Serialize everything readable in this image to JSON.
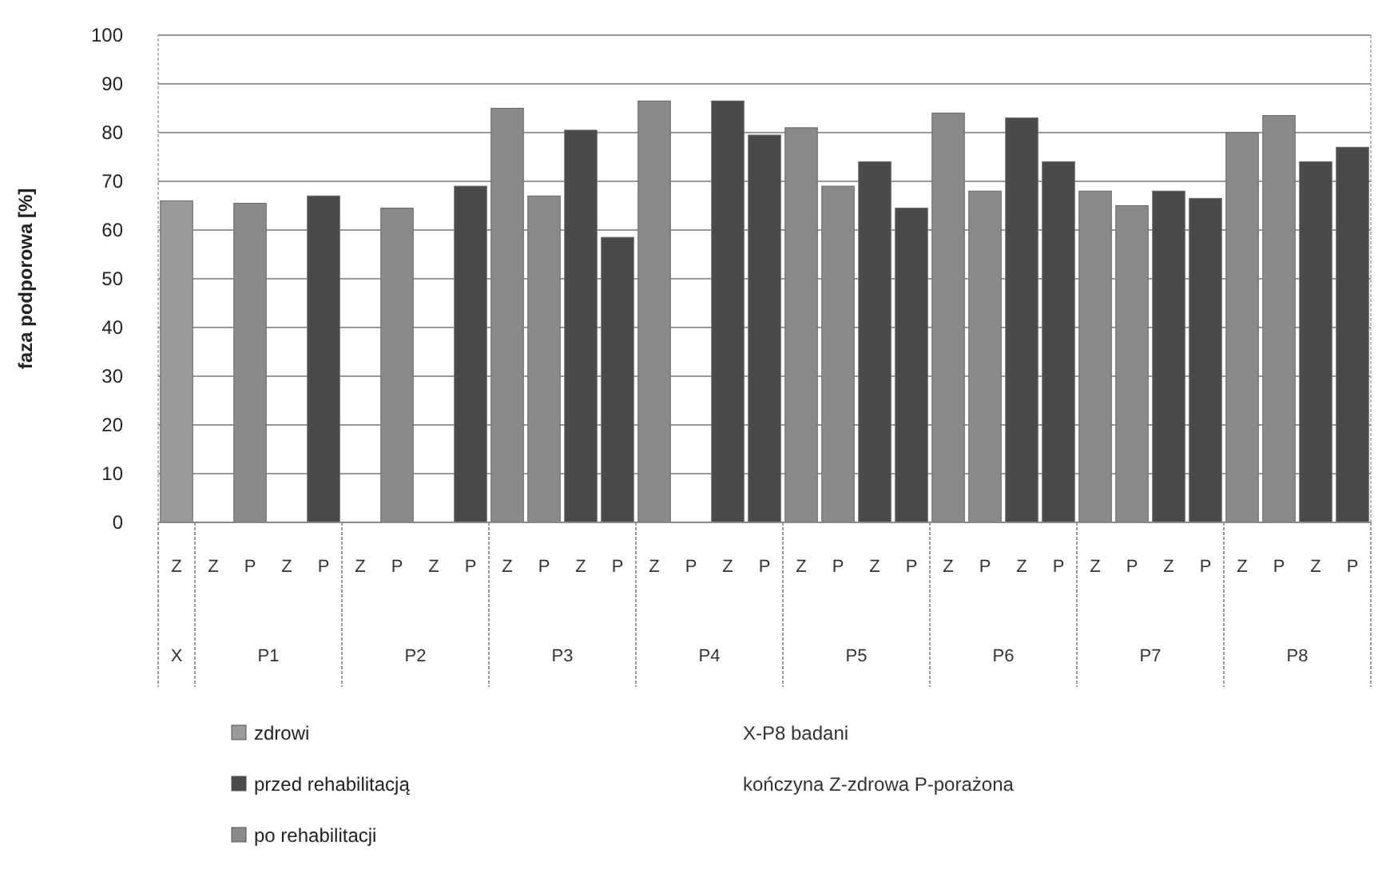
{
  "chart_data": {
    "type": "bar",
    "ylabel": "faza podporowa [%]",
    "categories": [
      "Z",
      "Z",
      "P",
      "Z",
      "P",
      "Z",
      "P",
      "Z",
      "P",
      "Z",
      "P",
      "Z",
      "P",
      "Z",
      "P",
      "Z",
      "P",
      "Z",
      "P",
      "Z",
      "P",
      "Z",
      "P",
      "Z",
      "P",
      "Z",
      "P",
      "Z",
      "P",
      "Z",
      "P",
      "Z",
      "P"
    ],
    "series": [
      {
        "name": "zdrowi",
        "color": "#9a9a9a",
        "values": [
          66,
          null,
          null,
          null,
          null,
          null,
          null,
          null,
          null,
          null,
          null,
          null,
          null,
          null,
          null,
          null,
          null,
          null,
          null,
          null,
          null,
          null,
          null,
          null,
          null,
          null,
          null,
          null,
          null,
          null,
          null,
          null,
          null
        ]
      },
      {
        "name": "przed rehabilitacją",
        "color": "#4a4a4a",
        "values": [
          null,
          null,
          null,
          null,
          67,
          null,
          null,
          null,
          69,
          null,
          null,
          80.5,
          58.5,
          null,
          null,
          86.5,
          79.5,
          null,
          null,
          74,
          64.5,
          null,
          null,
          83,
          74,
          null,
          null,
          68,
          66.5,
          null,
          null,
          74,
          77
        ]
      },
      {
        "name": "po rehabilitacji",
        "color": "#8a8a8a",
        "values": [
          null,
          null,
          65.5,
          null,
          null,
          null,
          64.5,
          null,
          null,
          85,
          67,
          null,
          null,
          86.5,
          null,
          null,
          null,
          81,
          69,
          null,
          null,
          84,
          68,
          null,
          null,
          68,
          65,
          null,
          null,
          80,
          83.5,
          null,
          null
        ]
      }
    ],
    "ylim": [
      0,
      100
    ],
    "yticks": [
      0,
      10,
      20,
      30,
      40,
      50,
      60,
      70,
      80,
      90,
      100
    ],
    "grid": "y",
    "legend": "bottom left",
    "annotations": [
      "X",
      "P1",
      "P2",
      "P3",
      "P4",
      "P5",
      "P6",
      "P7",
      "P8",
      "X-P8 badani",
      "kończyna Z-zdrowa P-porażona"
    ]
  }
}
